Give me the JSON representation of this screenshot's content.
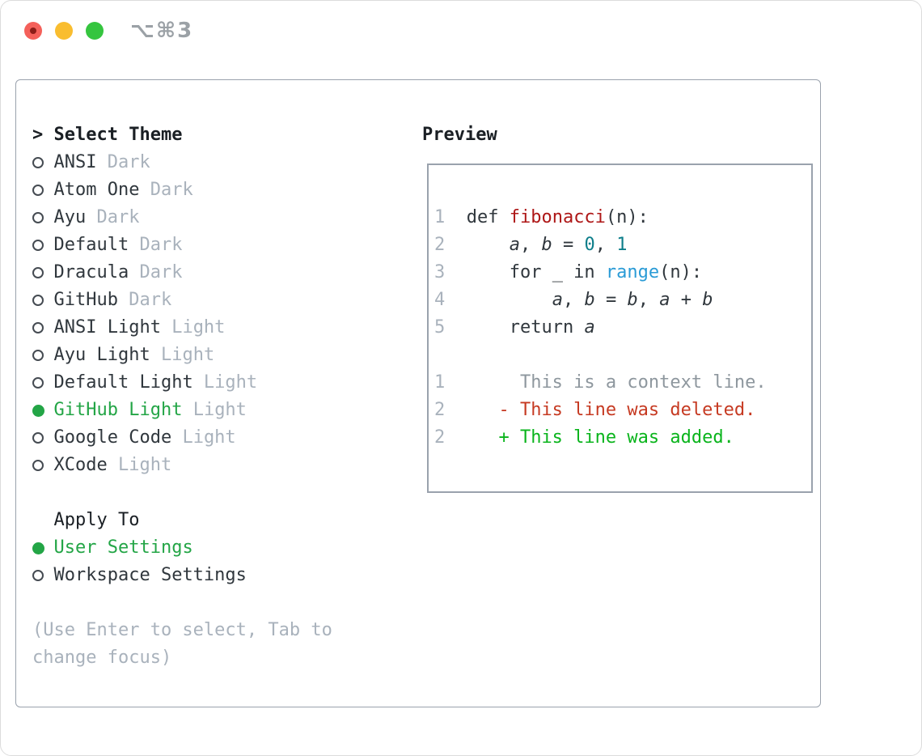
{
  "window": {
    "title": "⌥⌘3",
    "traffic_lights": [
      "close",
      "minimize",
      "zoom"
    ]
  },
  "colors": {
    "code_text": "#30373d",
    "function_red": "#ae1717",
    "number_teal": "#0d7e8a",
    "builtin_blue": "#2a9bd6",
    "context_gray": "#8e979e",
    "deleted_red": "#c63a22",
    "added_green": "#0ab41c",
    "selected_green": "#23a546",
    "muted_gray": "#a9b2bc",
    "heading_black": "#1a1f24",
    "border_gray": "#9aa2ad",
    "titlebar_gray": "#9ba1a6",
    "traffic_red": "#f4605a",
    "traffic_yellow": "#f9bd2f",
    "traffic_green": "#35c53f"
  },
  "theme_picker": {
    "header_marker": ">",
    "header_label": "Select Theme",
    "themes": [
      {
        "name": "ANSI",
        "tag": "Dark",
        "selected": false
      },
      {
        "name": "Atom One",
        "tag": "Dark",
        "selected": false
      },
      {
        "name": "Ayu",
        "tag": "Dark",
        "selected": false
      },
      {
        "name": "Default",
        "tag": "Dark",
        "selected": false
      },
      {
        "name": "Dracula",
        "tag": "Dark",
        "selected": false
      },
      {
        "name": "GitHub",
        "tag": "Dark",
        "selected": false
      },
      {
        "name": "ANSI Light",
        "tag": "Light",
        "selected": false
      },
      {
        "name": "Ayu Light",
        "tag": "Light",
        "selected": false
      },
      {
        "name": "Default Light",
        "tag": "Light",
        "selected": false
      },
      {
        "name": "GitHub Light",
        "tag": "Light",
        "selected": true
      },
      {
        "name": "Google Code",
        "tag": "Light",
        "selected": false
      },
      {
        "name": "XCode",
        "tag": "Light",
        "selected": false
      }
    ],
    "apply_to": {
      "label": "Apply To",
      "options": [
        {
          "name": "User Settings",
          "selected": true
        },
        {
          "name": "Workspace Settings",
          "selected": false
        }
      ]
    },
    "hint_lines": [
      "(Use Enter to select, Tab to",
      "change focus)"
    ]
  },
  "preview": {
    "title": "Preview",
    "code_lines": [
      {
        "num": "1",
        "segments": [
          {
            "t": "def ",
            "c": "code"
          },
          {
            "t": "fibonacci",
            "c": "func"
          },
          {
            "t": "(n):",
            "c": "code"
          }
        ]
      },
      {
        "num": "2",
        "segments": [
          {
            "t": "    ",
            "c": "code"
          },
          {
            "t": "a",
            "c": "var"
          },
          {
            "t": ", ",
            "c": "code"
          },
          {
            "t": "b",
            "c": "var"
          },
          {
            "t": " = ",
            "c": "code"
          },
          {
            "t": "0",
            "c": "numlit"
          },
          {
            "t": ", ",
            "c": "code"
          },
          {
            "t": "1",
            "c": "numlit"
          }
        ]
      },
      {
        "num": "3",
        "segments": [
          {
            "t": "    for _ in ",
            "c": "code"
          },
          {
            "t": "range",
            "c": "builtin"
          },
          {
            "t": "(n):",
            "c": "code"
          }
        ]
      },
      {
        "num": "4",
        "segments": [
          {
            "t": "        ",
            "c": "code"
          },
          {
            "t": "a",
            "c": "var"
          },
          {
            "t": ", ",
            "c": "code"
          },
          {
            "t": "b",
            "c": "var"
          },
          {
            "t": " = ",
            "c": "code"
          },
          {
            "t": "b",
            "c": "var"
          },
          {
            "t": ", ",
            "c": "code"
          },
          {
            "t": "a",
            "c": "var"
          },
          {
            "t": " + ",
            "c": "code"
          },
          {
            "t": "b",
            "c": "var"
          }
        ]
      },
      {
        "num": "5",
        "segments": [
          {
            "t": "    return ",
            "c": "code"
          },
          {
            "t": "a",
            "c": "var"
          }
        ]
      }
    ],
    "diff_lines": [
      {
        "num": "1",
        "marker": " ",
        "text": "This is a context line.",
        "c": "ctx"
      },
      {
        "num": "2",
        "marker": "-",
        "text": "This line was deleted.",
        "c": "del"
      },
      {
        "num": "2",
        "marker": "+",
        "text": "This line was added.",
        "c": "add"
      }
    ]
  }
}
